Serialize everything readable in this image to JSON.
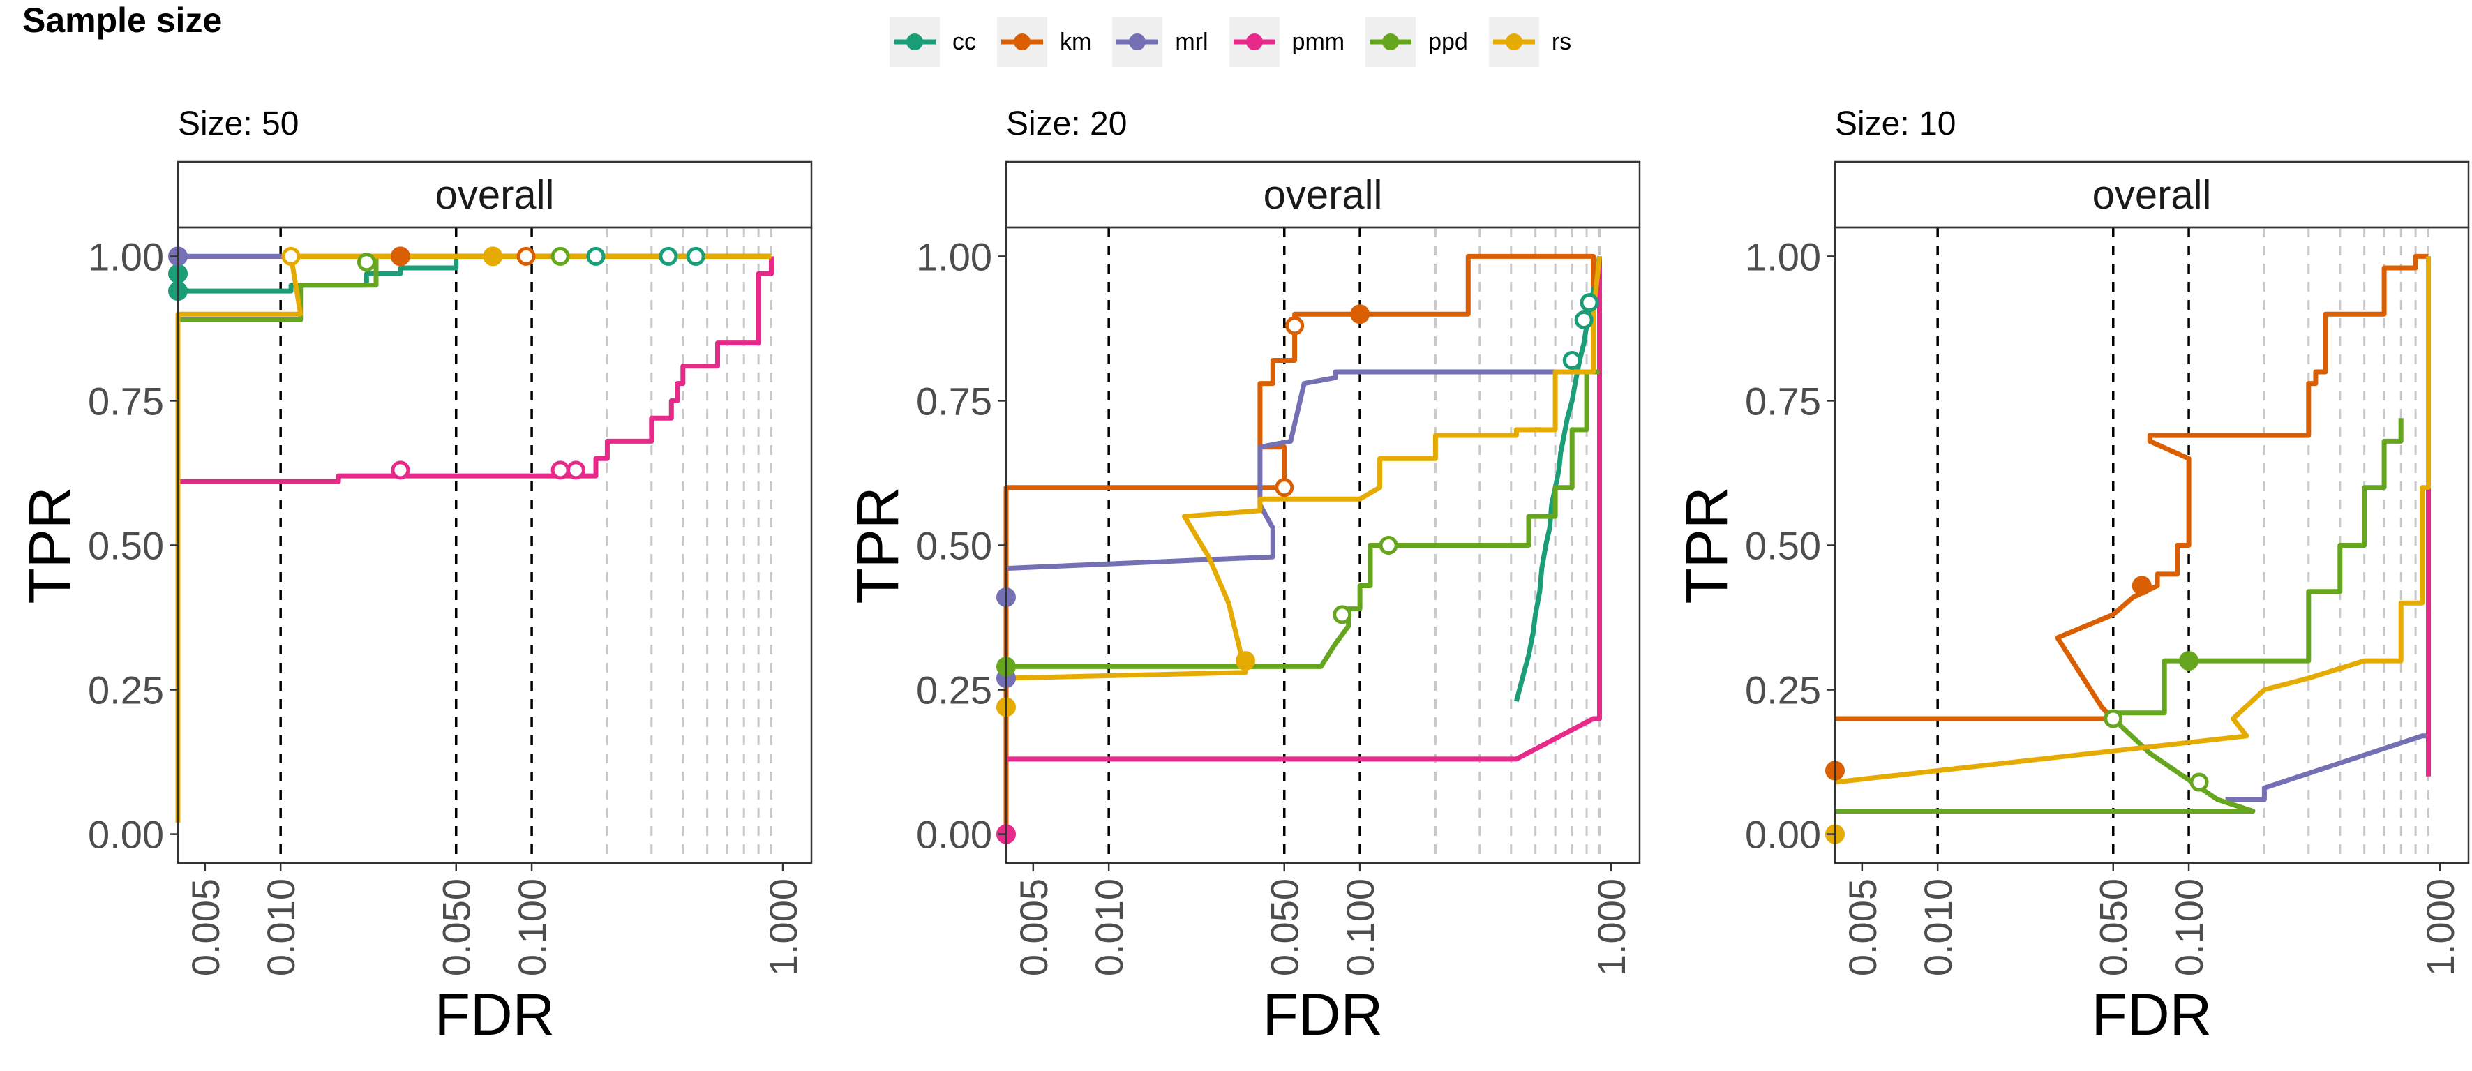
{
  "figure_title": "Sample size",
  "legend": {
    "entries": [
      {
        "name": "cc",
        "color": "#1b9e77"
      },
      {
        "name": "km",
        "color": "#d95f02"
      },
      {
        "name": "mrl",
        "color": "#7570b3"
      },
      {
        "name": "pmm",
        "color": "#e7298a"
      },
      {
        "name": "ppd",
        "color": "#66a61e"
      },
      {
        "name": "rs",
        "color": "#e6ab02"
      }
    ]
  },
  "chart_data": [
    {
      "type": "line",
      "title": "Size: 50",
      "strip": "overall",
      "xlabel": "FDR",
      "ylabel": "TPR",
      "x_scale": "log10",
      "xlim": [
        0.0039,
        1.3
      ],
      "ylim": [
        -0.05,
        1.05
      ],
      "x_ticks": [
        0.005,
        0.01,
        0.05,
        0.1,
        1.0
      ],
      "x_tick_labels": [
        "0.005",
        "0.010",
        "0.050",
        "0.100",
        "1.000"
      ],
      "y_ticks": [
        0,
        0.25,
        0.5,
        0.75,
        1.0
      ],
      "y_tick_labels": [
        "0.00",
        "0.25",
        "0.50",
        "0.75",
        "1.00"
      ],
      "vlines_dashed": [
        0.01,
        0.05,
        0.1
      ],
      "vlines_grey": [
        0.2,
        0.3,
        0.4,
        0.5,
        0.6,
        0.7,
        0.8,
        0.9
      ],
      "series": [
        {
          "name": "cc",
          "x": [
            0.0039,
            0.0039,
            0.011,
            0.011,
            0.022,
            0.022,
            0.03,
            0.03,
            0.05,
            0.05,
            0.9
          ],
          "y": [
            0.94,
            0.94,
            0.94,
            0.95,
            0.95,
            0.97,
            0.97,
            0.98,
            0.98,
            1.0,
            1.0
          ],
          "markers": [
            {
              "x": 0.0039,
              "y": 0.94,
              "filled": true
            },
            {
              "x": 0.0039,
              "y": 0.97,
              "filled": true
            },
            {
              "x": 0.18,
              "y": 1.0,
              "filled": false
            },
            {
              "x": 0.35,
              "y": 1.0,
              "filled": false
            },
            {
              "x": 0.45,
              "y": 1.0,
              "filled": false
            }
          ]
        },
        {
          "name": "km",
          "x": [
            0.0039,
            0.9
          ],
          "y": [
            1.0,
            1.0
          ],
          "markers": [
            {
              "x": 0.03,
              "y": 1.0,
              "filled": true
            },
            {
              "x": 0.095,
              "y": 1.0,
              "filled": false
            }
          ]
        },
        {
          "name": "mrl",
          "x": [
            0.0039,
            0.9
          ],
          "y": [
            1.0,
            1.0
          ],
          "markers": [
            {
              "x": 0.0039,
              "y": 1.0,
              "filled": true
            }
          ]
        },
        {
          "name": "pmm",
          "x": [
            0.0039,
            0.017,
            0.017,
            0.18,
            0.18,
            0.2,
            0.2,
            0.3,
            0.3,
            0.36,
            0.36,
            0.38,
            0.38,
            0.4,
            0.4,
            0.55,
            0.55,
            0.8,
            0.8,
            0.9,
            0.9
          ],
          "y": [
            0.61,
            0.61,
            0.62,
            0.62,
            0.65,
            0.65,
            0.68,
            0.68,
            0.72,
            0.72,
            0.75,
            0.75,
            0.78,
            0.78,
            0.81,
            0.81,
            0.85,
            0.85,
            0.97,
            0.97,
            1.0
          ],
          "markers": [
            {
              "x": 0.03,
              "y": 0.63,
              "filled": false
            },
            {
              "x": 0.13,
              "y": 0.63,
              "filled": false
            },
            {
              "x": 0.15,
              "y": 0.63,
              "filled": false
            }
          ]
        },
        {
          "name": "ppd",
          "x": [
            0.0039,
            0.012,
            0.012,
            0.024,
            0.024,
            0.9
          ],
          "y": [
            0.89,
            0.89,
            0.95,
            0.95,
            1.0,
            1.0
          ],
          "markers": [
            {
              "x": 0.022,
              "y": 0.99,
              "filled": false
            },
            {
              "x": 0.13,
              "y": 1.0,
              "filled": false
            }
          ]
        },
        {
          "name": "rs",
          "x": [
            0.0039,
            0.0039,
            0.012,
            0.011,
            0.9,
            0.9
          ],
          "y": [
            0.02,
            0.9,
            0.9,
            1.0,
            1.0,
            1.0
          ],
          "markers": [
            {
              "x": 0.011,
              "y": 1.0,
              "filled": false
            },
            {
              "x": 0.07,
              "y": 1.0,
              "filled": true
            }
          ]
        }
      ]
    },
    {
      "type": "line",
      "title": "Size: 20",
      "strip": "overall",
      "xlabel": "FDR",
      "ylabel": "TPR",
      "x_scale": "log10",
      "xlim": [
        0.0039,
        1.3
      ],
      "ylim": [
        -0.05,
        1.05
      ],
      "x_ticks": [
        0.005,
        0.01,
        0.05,
        0.1,
        1.0
      ],
      "x_tick_labels": [
        "0.005",
        "0.010",
        "0.050",
        "0.100",
        "1.000"
      ],
      "y_ticks": [
        0,
        0.25,
        0.5,
        0.75,
        1.0
      ],
      "y_tick_labels": [
        "0.00",
        "0.25",
        "0.50",
        "0.75",
        "1.00"
      ],
      "vlines_dashed": [
        0.01,
        0.05,
        0.1
      ],
      "vlines_grey": [
        0.2,
        0.3,
        0.4,
        0.5,
        0.6,
        0.7,
        0.8,
        0.9
      ],
      "series": [
        {
          "name": "cc",
          "x": [
            0.42,
            0.45,
            0.47,
            0.49,
            0.5,
            0.52,
            0.53,
            0.55,
            0.57,
            0.58,
            0.6,
            0.62,
            0.63,
            0.65,
            0.67,
            0.7,
            0.72,
            0.75,
            0.78,
            0.8,
            0.82,
            0.85,
            0.87,
            0.9
          ],
          "y": [
            0.23,
            0.28,
            0.31,
            0.35,
            0.38,
            0.42,
            0.46,
            0.5,
            0.53,
            0.57,
            0.6,
            0.63,
            0.66,
            0.69,
            0.72,
            0.75,
            0.78,
            0.82,
            0.85,
            0.88,
            0.91,
            0.94,
            0.97,
            1.0
          ],
          "markers": [
            {
              "x": 0.7,
              "y": 0.82,
              "filled": false
            },
            {
              "x": 0.78,
              "y": 0.89,
              "filled": false
            },
            {
              "x": 0.82,
              "y": 0.92,
              "filled": false
            }
          ]
        },
        {
          "name": "km",
          "x": [
            0.0039,
            0.0039,
            0.05,
            0.05,
            0.04,
            0.04,
            0.045,
            0.045,
            0.055,
            0.055,
            0.27,
            0.27,
            0.85,
            0.85,
            0.9,
            0.9
          ],
          "y": [
            0.0,
            0.6,
            0.6,
            0.67,
            0.67,
            0.78,
            0.78,
            0.82,
            0.82,
            0.9,
            0.9,
            1.0,
            1.0,
            0.95,
            0.95,
            0.85
          ],
          "markers": [
            {
              "x": 0.05,
              "y": 0.6,
              "filled": false
            },
            {
              "x": 0.055,
              "y": 0.88,
              "filled": false
            },
            {
              "x": 0.1,
              "y": 0.9,
              "filled": true
            }
          ]
        },
        {
          "name": "mrl",
          "x": [
            0.0039,
            0.045,
            0.045,
            0.04,
            0.04,
            0.053,
            0.06,
            0.08,
            0.08,
            0.85,
            0.85
          ],
          "y": [
            0.46,
            0.48,
            0.53,
            0.57,
            0.67,
            0.68,
            0.78,
            0.79,
            0.8,
            0.8,
            0.9
          ],
          "markers": [
            {
              "x": 0.0039,
              "y": 0.41,
              "filled": true
            },
            {
              "x": 0.0039,
              "y": 0.27,
              "filled": true
            }
          ]
        },
        {
          "name": "pmm",
          "x": [
            0.0039,
            0.42,
            0.85,
            0.9,
            0.9
          ],
          "y": [
            0.13,
            0.13,
            0.2,
            0.2,
            1.0
          ],
          "markers": [
            {
              "x": 0.0039,
              "y": 0.0,
              "filled": true
            }
          ]
        },
        {
          "name": "ppd",
          "x": [
            0.0039,
            0.07,
            0.08,
            0.09,
            0.09,
            0.1,
            0.1,
            0.11,
            0.11,
            0.13,
            0.13,
            0.47,
            0.47,
            0.6,
            0.6,
            0.7,
            0.7,
            0.8,
            0.8,
            0.9
          ],
          "y": [
            0.29,
            0.29,
            0.33,
            0.36,
            0.39,
            0.39,
            0.43,
            0.43,
            0.5,
            0.5,
            0.5,
            0.5,
            0.55,
            0.55,
            0.6,
            0.6,
            0.7,
            0.7,
            0.8,
            0.8
          ],
          "markers": [
            {
              "x": 0.0039,
              "y": 0.29,
              "filled": true
            },
            {
              "x": 0.085,
              "y": 0.38,
              "filled": false
            },
            {
              "x": 0.13,
              "y": 0.5,
              "filled": false
            }
          ]
        },
        {
          "name": "rs",
          "x": [
            0.0039,
            0.035,
            0.035,
            0.03,
            0.025,
            0.02,
            0.04,
            0.04,
            0.1,
            0.12,
            0.12,
            0.2,
            0.2,
            0.42,
            0.42,
            0.6,
            0.6,
            0.85,
            0.85,
            0.9
          ],
          "y": [
            0.27,
            0.28,
            0.28,
            0.4,
            0.48,
            0.55,
            0.56,
            0.58,
            0.58,
            0.6,
            0.65,
            0.65,
            0.69,
            0.69,
            0.7,
            0.7,
            0.8,
            0.8,
            0.9,
            1.0
          ],
          "markers": [
            {
              "x": 0.0039,
              "y": 0.22,
              "filled": true
            },
            {
              "x": 0.035,
              "y": 0.3,
              "filled": true
            }
          ]
        }
      ]
    },
    {
      "type": "line",
      "title": "Size: 10",
      "strip": "overall",
      "xlabel": "FDR",
      "ylabel": "TPR",
      "x_scale": "log10",
      "xlim": [
        0.0039,
        1.3
      ],
      "ylim": [
        -0.05,
        1.05
      ],
      "x_ticks": [
        0.005,
        0.01,
        0.05,
        0.1,
        1.0
      ],
      "x_tick_labels": [
        "0.005",
        "0.010",
        "0.050",
        "0.100",
        "1.000"
      ],
      "y_ticks": [
        0,
        0.25,
        0.5,
        0.75,
        1.0
      ],
      "y_tick_labels": [
        "0.00",
        "0.25",
        "0.50",
        "0.75",
        "1.00"
      ],
      "vlines_dashed": [
        0.01,
        0.05,
        0.1
      ],
      "vlines_grey": [
        0.2,
        0.3,
        0.4,
        0.5,
        0.6,
        0.7,
        0.8,
        0.9
      ],
      "series": [
        {
          "name": "km",
          "x": [
            0.0039,
            0.05,
            0.045,
            0.03,
            0.05,
            0.06,
            0.075,
            0.075,
            0.09,
            0.09,
            0.1,
            0.1,
            0.07,
            0.07,
            0.2,
            0.2,
            0.3,
            0.3,
            0.32,
            0.32,
            0.35,
            0.35,
            0.6,
            0.6,
            0.8,
            0.8,
            0.9
          ],
          "y": [
            0.2,
            0.2,
            0.22,
            0.34,
            0.38,
            0.41,
            0.43,
            0.45,
            0.45,
            0.5,
            0.5,
            0.65,
            0.68,
            0.69,
            0.69,
            0.69,
            0.69,
            0.78,
            0.78,
            0.8,
            0.8,
            0.9,
            0.9,
            0.98,
            0.98,
            1.0,
            1.0
          ],
          "markers": [
            {
              "x": 0.0039,
              "y": 0.11,
              "filled": true
            },
            {
              "x": 0.065,
              "y": 0.43,
              "filled": true
            }
          ]
        },
        {
          "name": "mrl",
          "x": [
            0.14,
            0.2,
            0.2,
            0.85,
            0.9,
            0.9
          ],
          "y": [
            0.06,
            0.06,
            0.08,
            0.17,
            0.17,
            1.0
          ],
          "markers": []
        },
        {
          "name": "pmm",
          "x": [
            0.9,
            0.9
          ],
          "y": [
            0.1,
            1.0
          ],
          "markers": []
        },
        {
          "name": "ppd",
          "x": [
            0.0039,
            0.18,
            0.13,
            0.07,
            0.05,
            0.05,
            0.08,
            0.08,
            0.3,
            0.3,
            0.4,
            0.4,
            0.5,
            0.5,
            0.6,
            0.6,
            0.7,
            0.7
          ],
          "y": [
            0.04,
            0.04,
            0.06,
            0.14,
            0.2,
            0.21,
            0.21,
            0.3,
            0.3,
            0.42,
            0.42,
            0.5,
            0.5,
            0.6,
            0.6,
            0.68,
            0.68,
            0.72
          ],
          "markers": [
            {
              "x": 0.05,
              "y": 0.2,
              "filled": false
            },
            {
              "x": 0.1,
              "y": 0.3,
              "filled": true
            },
            {
              "x": 0.11,
              "y": 0.09,
              "filled": false
            }
          ]
        },
        {
          "name": "rs",
          "x": [
            0.0039,
            0.17,
            0.15,
            0.2,
            0.3,
            0.5,
            0.7,
            0.7,
            0.85,
            0.85,
            0.9,
            0.9
          ],
          "y": [
            0.09,
            0.17,
            0.2,
            0.25,
            0.27,
            0.3,
            0.3,
            0.4,
            0.4,
            0.6,
            0.6,
            1.0
          ],
          "markers": [
            {
              "x": 0.0039,
              "y": 0.0,
              "filled": true
            }
          ]
        }
      ]
    }
  ]
}
